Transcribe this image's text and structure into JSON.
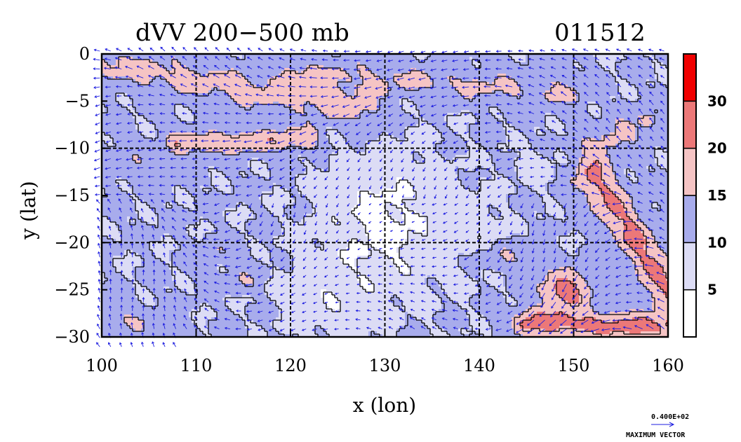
{
  "chart_data": {
    "type": "heatmap",
    "title": "dVV 200−500 mb",
    "subtitle": "011512",
    "xlabel": "x (lon)",
    "ylabel": "y (lat)",
    "xlim": [
      100,
      160
    ],
    "ylim": [
      -30,
      0
    ],
    "x_ticks": [
      100,
      110,
      120,
      130,
      140,
      150,
      160
    ],
    "x_tick_labels": [
      "100",
      "110",
      "120",
      "130",
      "140",
      "150",
      "160"
    ],
    "y_ticks": [
      0,
      -5,
      -10,
      -15,
      -20,
      -25,
      -30
    ],
    "y_tick_labels": [
      "0",
      "−5",
      "−10",
      "−15",
      "−20",
      "−25",
      "−30"
    ],
    "grid_x": [
      110,
      120,
      130,
      140,
      150
    ],
    "grid_y": [
      -10,
      -20
    ],
    "grid": true,
    "colorbar": {
      "levels": [
        0,
        5,
        10,
        15,
        20,
        30,
        40
      ],
      "labels": [
        "5",
        "10",
        "15",
        "20",
        "30"
      ],
      "label_values": [
        5,
        10,
        15,
        20,
        30
      ],
      "colors": [
        "#ffffff",
        "#dcdcf5",
        "#a8acec",
        "#f5c4c4",
        "#ec7878",
        "#f00000"
      ]
    },
    "vector_color": "#1c1ce0",
    "max_vector": {
      "value_label": "0.400E+02",
      "caption": "MAXIMUM VECTOR"
    }
  }
}
